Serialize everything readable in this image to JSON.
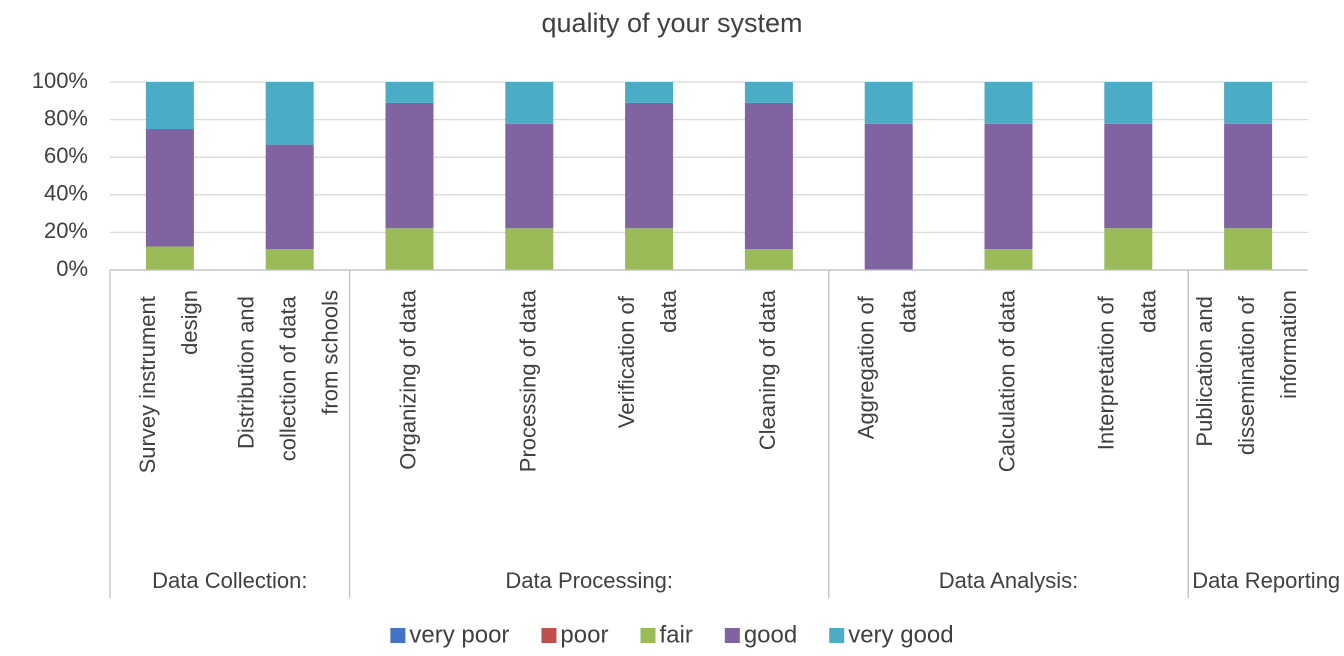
{
  "chart_data": {
    "type": "stacked_bar_percent",
    "title": "quality of your system",
    "categories": [
      "Survey instrument design",
      "Distribution and collection of data from schools",
      "Organizing of data",
      "Processing of data",
      "Verification of data",
      "Cleaning of data",
      "Aggregation of data",
      "Calculation of data",
      "Interpretation of data",
      "Publication and dissemination of information"
    ],
    "groups": [
      {
        "name": "Data Collection:",
        "count": 2
      },
      {
        "name": "Data Processing:",
        "count": 4
      },
      {
        "name": "Data Analysis:",
        "count": 3
      },
      {
        "name": "Data Reporting",
        "count": 1
      }
    ],
    "series": [
      {
        "name": "very poor",
        "color": "#4472c4",
        "values": [
          0,
          0,
          0,
          0,
          0,
          0,
          0,
          0,
          0,
          0
        ]
      },
      {
        "name": "poor",
        "color": "#c0504d",
        "values": [
          0,
          0,
          0,
          0,
          0,
          0,
          0,
          0,
          0,
          0
        ]
      },
      {
        "name": "fair",
        "color": "#9bbb59",
        "values": [
          12.5,
          11.1,
          22.2,
          22.2,
          22.2,
          11.1,
          0,
          11.1,
          22.2,
          22.2
        ]
      },
      {
        "name": "good",
        "color": "#8064a2",
        "values": [
          62.5,
          55.6,
          66.7,
          55.6,
          66.7,
          77.8,
          77.8,
          66.7,
          55.6,
          55.6
        ]
      },
      {
        "name": "very good",
        "color": "#4bacc6",
        "values": [
          25,
          33.3,
          11.1,
          22.2,
          11.1,
          11.1,
          22.2,
          22.2,
          22.2,
          22.2
        ]
      }
    ],
    "ylim": [
      0,
      100
    ],
    "yticks": [
      {
        "value": 0,
        "label": "0%"
      },
      {
        "value": 20,
        "label": "20%"
      },
      {
        "value": 40,
        "label": "40%"
      },
      {
        "value": 60,
        "label": "60%"
      },
      {
        "value": 80,
        "label": "80%"
      },
      {
        "value": 100,
        "label": "100%"
      }
    ],
    "grid": true,
    "legend": "bottom"
  }
}
